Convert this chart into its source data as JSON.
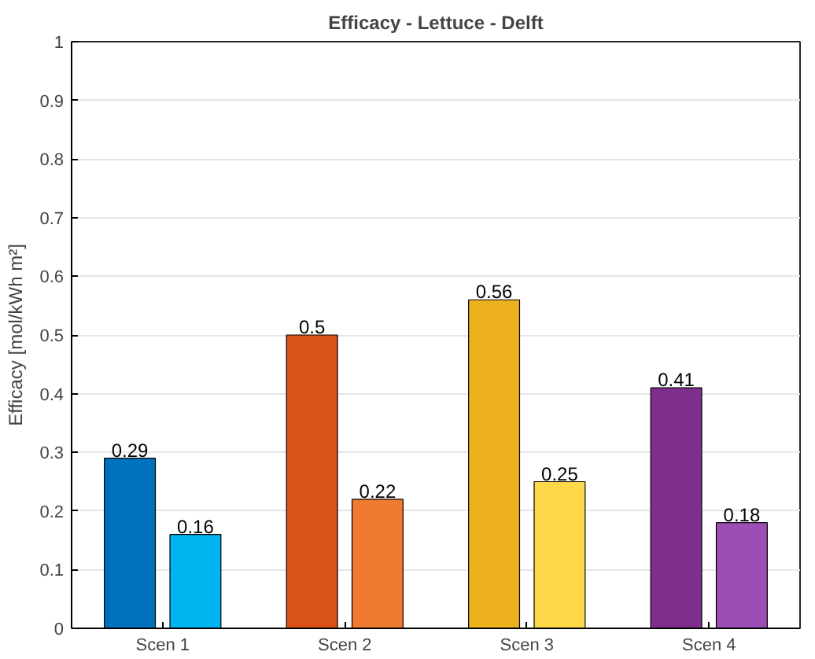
{
  "chart_data": {
    "type": "bar",
    "title": "Efficacy - Lettuce - Delft",
    "ylabel": "Efficacy [mol/kWh m²]",
    "categories": [
      "Scen 1",
      "Scen 2",
      "Scen 3",
      "Scen 4"
    ],
    "series": [
      {
        "values": [
          0.29,
          0.5,
          0.56,
          0.41
        ],
        "colors": [
          "#0072bd",
          "#d95319",
          "#edb120",
          "#7e2f8e"
        ]
      },
      {
        "values": [
          0.16,
          0.22,
          0.25,
          0.18
        ],
        "colors": [
          "#00b4f0",
          "#f07a30",
          "#ffd84a",
          "#9b4fb4"
        ]
      }
    ],
    "ylim": [
      0,
      1
    ],
    "yticks": [
      0,
      0.1,
      0.2,
      0.3,
      0.4,
      0.5,
      0.6,
      0.7,
      0.8,
      0.9,
      1
    ],
    "grid": "y",
    "data_labels": true
  }
}
